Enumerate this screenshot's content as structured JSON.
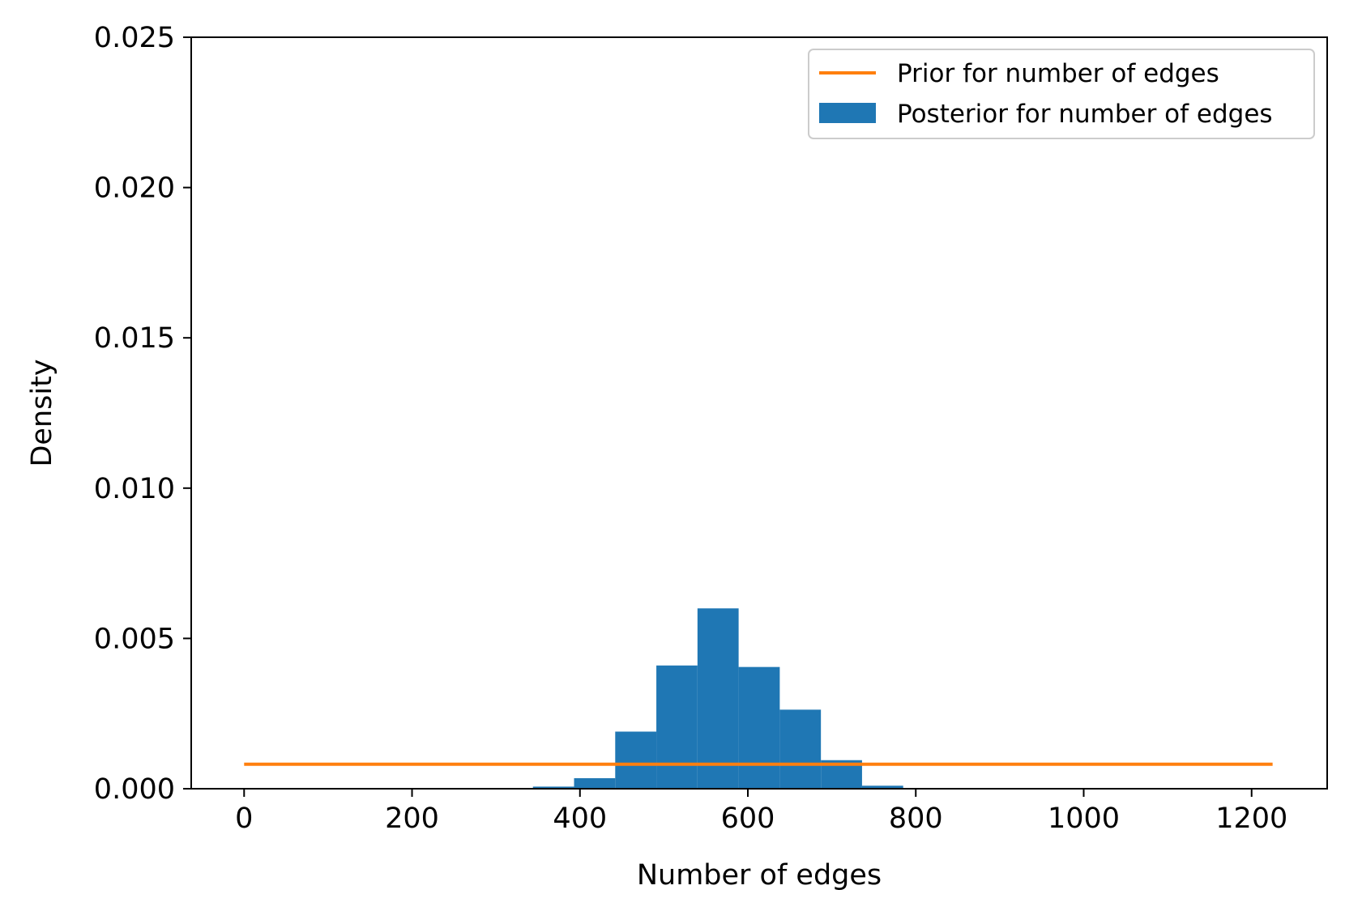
{
  "chart_data": {
    "type": "bar",
    "title": "",
    "xlabel": "Number of edges",
    "ylabel": "Density",
    "xlim": [
      -63,
      1290
    ],
    "ylim": [
      0,
      0.025
    ],
    "xticks": [
      0,
      200,
      400,
      600,
      800,
      1000,
      1200
    ],
    "xtick_labels": [
      "0",
      "200",
      "400",
      "600",
      "800",
      "1000",
      "1200"
    ],
    "yticks": [
      0,
      0.005,
      0.01,
      0.015,
      0.02,
      0.025
    ],
    "ytick_labels": [
      "0.000",
      "0.005",
      "0.010",
      "0.015",
      "0.020",
      "0.025"
    ],
    "grid": false,
    "legend_position": "top-right",
    "series": [
      {
        "name": "Prior for number of edges",
        "kind": "line",
        "color": "#ff7f0e",
        "x": [
          0,
          1225
        ],
        "y": [
          0.000816,
          0.000816
        ]
      },
      {
        "name": "Posterior for number of edges",
        "kind": "histogram",
        "color": "#1f77b4",
        "bin_edges": [
          344,
          393,
          442,
          491,
          540,
          589,
          638,
          687,
          736,
          785
        ],
        "values": [
          7e-05,
          0.00035,
          0.0019,
          0.0041,
          0.006,
          0.00405,
          0.00263,
          0.00095,
          0.0001
        ]
      }
    ]
  }
}
